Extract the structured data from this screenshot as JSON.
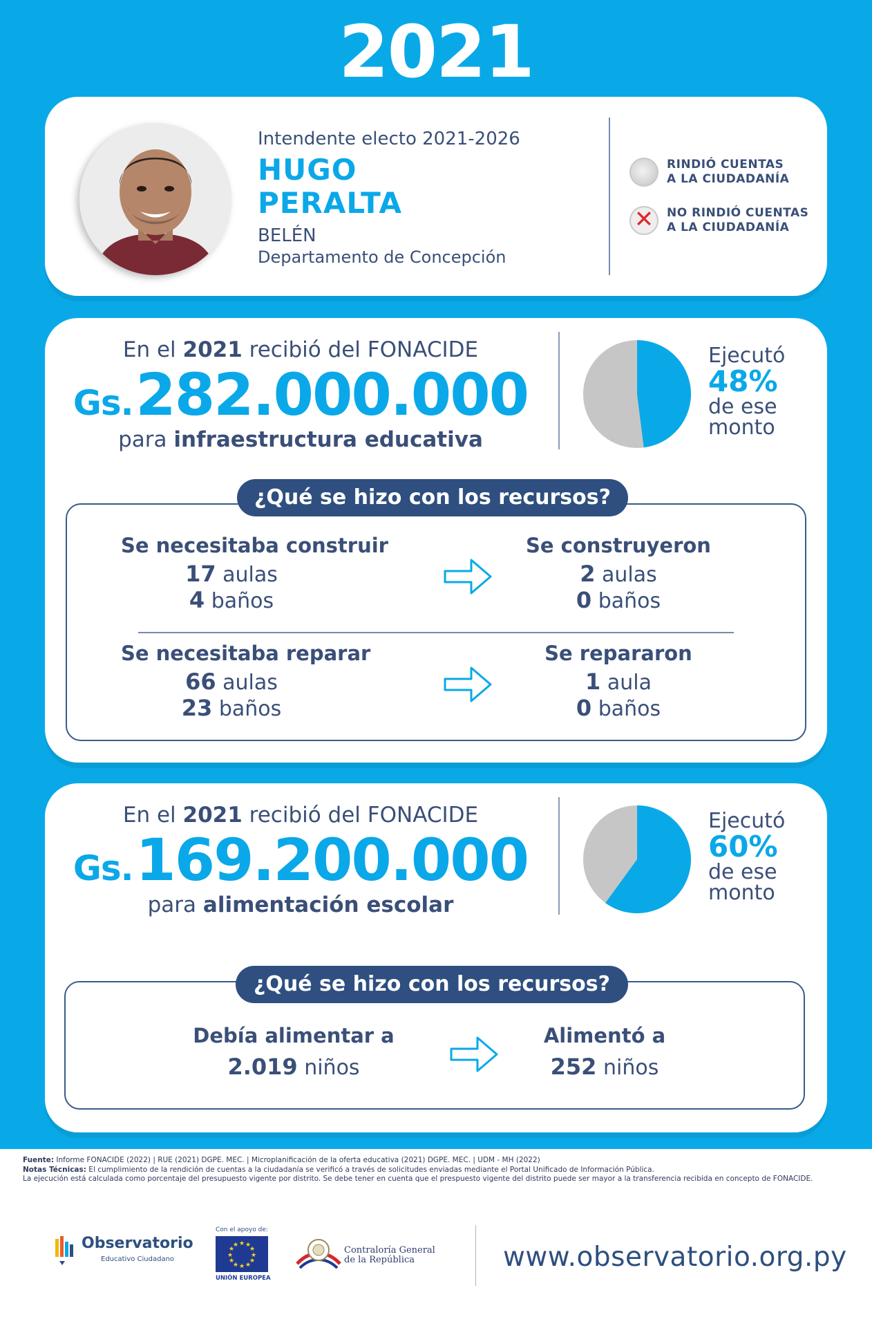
{
  "year": "2021",
  "profile": {
    "role": "Intendente electo 2021-2026",
    "name_line1": "HUGO",
    "name_line2": "PERALTA",
    "city": "BELÉN",
    "department": "Departamento de Concepción"
  },
  "legend": {
    "rendered": "RINDIÓ CUENTAS\nA LA CIUDADANÍA",
    "rendered_line1": "RINDIÓ CUENTAS",
    "rendered_line2": "A LA CIUDADANÍA",
    "not_rendered_line1": "NO RINDIÓ CUENTAS",
    "not_rendered_line2": "A LA CIUDADANÍA"
  },
  "infra": {
    "line1_pre": "En el ",
    "line1_year": "2021",
    "line1_post": " recibió del FONACIDE",
    "currency": "Gs.",
    "amount": "282.000.000",
    "line3_pre": "para ",
    "line3_bold": "infraestructura educativa",
    "exec_label": "Ejecutó",
    "exec_pct": "48%",
    "exec_pct_value": 48,
    "exec_tail1": "de ese",
    "exec_tail2": "monto",
    "question": "¿Qué se hizo con los recursos?",
    "build_need_title": "Se necesitaba construir",
    "build_need_aulas": "17",
    "build_need_aulas_unit": "aulas",
    "build_need_banos": "4",
    "build_need_banos_unit": "baños",
    "built_title": "Se construyeron",
    "built_aulas": "2",
    "built_aulas_unit": "aulas",
    "built_banos": "0",
    "built_banos_unit": "baños",
    "repair_need_title": "Se necesitaba reparar",
    "repair_need_aulas": "66",
    "repair_need_aulas_unit": "aulas",
    "repair_need_banos": "23",
    "repair_need_banos_unit": "baños",
    "repaired_title": "Se repararon",
    "repaired_aulas": "1",
    "repaired_aulas_unit": "aula",
    "repaired_banos": "0",
    "repaired_banos_unit": "baños"
  },
  "food": {
    "line1_pre": "En el ",
    "line1_year": "2021",
    "line1_post": " recibió del FONACIDE",
    "currency": "Gs.",
    "amount": "169.200.000",
    "line3_pre": "para ",
    "line3_bold": "alimentación escolar",
    "exec_label": "Ejecutó",
    "exec_pct": "60%",
    "exec_pct_value": 60,
    "exec_tail1": "de ese",
    "exec_tail2": "monto",
    "question": "¿Qué se hizo con los recursos?",
    "need_title": "Debía alimentar a",
    "need_value": "2.019",
    "need_unit": "niños",
    "done_title": "Alimentó a",
    "done_value": "252",
    "done_unit": "niños"
  },
  "footer": {
    "source_label": "Fuente:",
    "source_text": " Informe FONACIDE (2022) | RUE (2021) DGPE. MEC. | Microplanificación de la oferta educativa (2021) DGPE. MEC. | UDM - MH (2022)",
    "notes_label": "Notas Técnicas:",
    "notes_text": "  El cumplimiento de la rendición de cuentas a la ciudadanía se verificó a través de solicitudes enviadas mediante el Portal Unificado de Información Pública.",
    "notes_text2": "La ejecución está calculada como porcentaje del presupuesto vigente por distrito. Se debe tener en cuenta que el prespuesto vigente del distrito puede ser mayor a la transferencia recibida en concepto de FONACIDE.",
    "obs_title": "Observatorio",
    "obs_sub": "Educativo Ciudadano",
    "eu_top": "Con el apoyo de:",
    "eu_bottom": "UNIÓN EUROPEA",
    "cgr_line1": "Contraloría General",
    "cgr_line2": "de la República",
    "url": "www.observatorio.org.py"
  },
  "colors": {
    "brand_blue": "#09a9e8",
    "navy": "#2e4f7f",
    "pie_gray": "#c6c6c6"
  }
}
